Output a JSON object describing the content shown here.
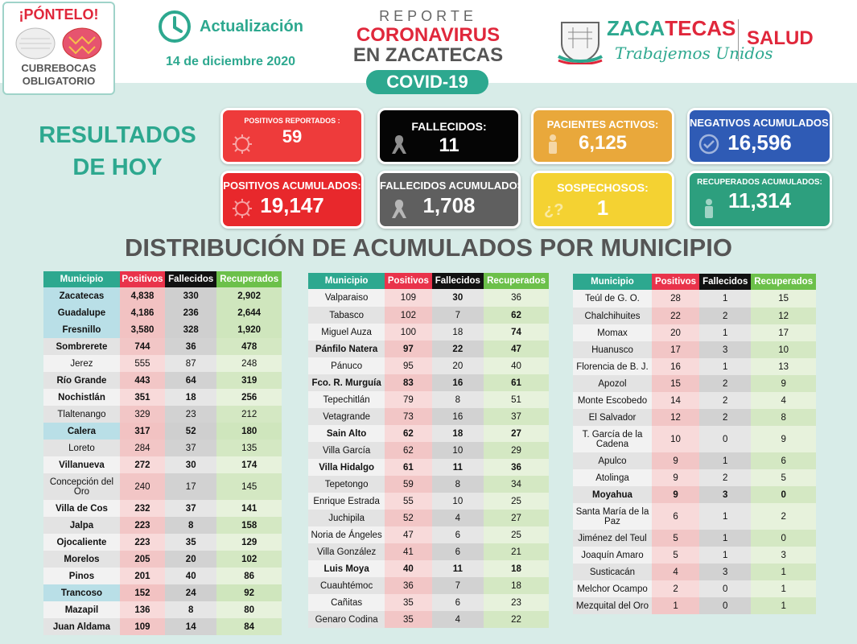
{
  "header": {
    "mask_title": "¡PÓNTELO!",
    "mask_subtitle_1": "CUBREBOCAS",
    "mask_subtitle_2": "OBLIGATORIO",
    "update_label": "Actualización",
    "update_date": "14 de diciembre 2020",
    "report_line1": "REPORTE",
    "report_line2": "CORONAVIRUS",
    "report_line3": "EN ZACATECAS",
    "covid_label": "COVID-19",
    "state_name_a": "ZACA",
    "state_name_b": "TECAS",
    "state_slogan": "Trabajemos Unidos",
    "salud": "SALUD"
  },
  "results": {
    "title_line1": "RESULTADOS",
    "title_line2": "DE HOY",
    "cards": [
      {
        "key": "positivos-reportados",
        "label": "POSITIVOS REPORTADOS :",
        "value": "59",
        "color": "#ee3b3b"
      },
      {
        "key": "fallecidos",
        "label": "FALLECIDOS:",
        "value": "11",
        "color": "#050505"
      },
      {
        "key": "pacientes-activos",
        "label": "PACIENTES ACTIVOS:",
        "value": "6,125",
        "color": "#e9a83b"
      },
      {
        "key": "negativos-acumulados",
        "label": "NEGATIVOS ACUMULADOS:",
        "value": "16,596",
        "color": "#2f5bb5"
      },
      {
        "key": "positivos-acumulados",
        "label": "POSITIVOS ACUMULADOS:",
        "value": "19,147",
        "color": "#e8282c"
      },
      {
        "key": "fallecidos-acumulados",
        "label": "FALLECIDOS ACUMULADOS:",
        "value": "1,708",
        "color": "#5f5f5f"
      },
      {
        "key": "sospechosos",
        "label": "SOSPECHOSOS:",
        "value": "1",
        "color": "#f4d232"
      },
      {
        "key": "recuperados-acumulados",
        "label": "RECUPERADOS ACUMULADOS:",
        "value": "11,314",
        "color": "#2d9f7e"
      }
    ]
  },
  "distribution": {
    "title": "DISTRIBUCIÓN DE ACUMULADOS POR MUNICIPIO",
    "columns": [
      "Municipio",
      "Positivos",
      "Fallecidos",
      "Recuperados"
    ],
    "tables": [
      [
        [
          "Zacatecas",
          "4,838",
          "330",
          "2,902"
        ],
        [
          "Guadalupe",
          "4,186",
          "236",
          "2,644"
        ],
        [
          "Fresnillo",
          "3,580",
          "328",
          "1,920"
        ],
        [
          "Sombrerete",
          "744",
          "36",
          "478"
        ],
        [
          "Jerez",
          "555",
          "87",
          "248"
        ],
        [
          "Río Grande",
          "443",
          "64",
          "319"
        ],
        [
          "Nochistlán",
          "351",
          "18",
          "256"
        ],
        [
          "Tlaltenango",
          "329",
          "23",
          "212"
        ],
        [
          "Calera",
          "317",
          "52",
          "180"
        ],
        [
          "Loreto",
          "284",
          "37",
          "135"
        ],
        [
          "Villanueva",
          "272",
          "30",
          "174"
        ],
        [
          "Concepción del Oro",
          "240",
          "17",
          "145"
        ],
        [
          "Villa de Cos",
          "232",
          "37",
          "141"
        ],
        [
          "Jalpa",
          "223",
          "8",
          "158"
        ],
        [
          "Ojocaliente",
          "223",
          "35",
          "129"
        ],
        [
          "Morelos",
          "205",
          "20",
          "102"
        ],
        [
          "Pinos",
          "201",
          "40",
          "86"
        ],
        [
          "Trancoso",
          "152",
          "24",
          "92"
        ],
        [
          "Mazapil",
          "136",
          "8",
          "80"
        ],
        [
          "Juan Aldama",
          "109",
          "14",
          "84"
        ]
      ],
      [
        [
          "Valparaiso",
          "109",
          "30",
          "36"
        ],
        [
          "Tabasco",
          "102",
          "7",
          "62"
        ],
        [
          "Miguel Auza",
          "100",
          "18",
          "74"
        ],
        [
          "Pánfilo Natera",
          "97",
          "22",
          "47"
        ],
        [
          "Pánuco",
          "95",
          "20",
          "40"
        ],
        [
          "Fco. R. Murguía",
          "83",
          "16",
          "61"
        ],
        [
          "Tepechitlán",
          "79",
          "8",
          "51"
        ],
        [
          "Vetagrande",
          "73",
          "16",
          "37"
        ],
        [
          "Sain Alto",
          "62",
          "18",
          "27"
        ],
        [
          "Villa García",
          "62",
          "10",
          "29"
        ],
        [
          "Villa Hidalgo",
          "61",
          "11",
          "36"
        ],
        [
          "Tepetongo",
          "59",
          "8",
          "34"
        ],
        [
          "Enrique Estrada",
          "55",
          "10",
          "25"
        ],
        [
          "Juchipila",
          "52",
          "4",
          "27"
        ],
        [
          "Noria de Ángeles",
          "47",
          "6",
          "25"
        ],
        [
          "Villa González",
          "41",
          "6",
          "21"
        ],
        [
          "Luis Moya",
          "40",
          "11",
          "18"
        ],
        [
          "Cuauhtémoc",
          "36",
          "7",
          "18"
        ],
        [
          "Cañitas",
          "35",
          "6",
          "23"
        ],
        [
          "Genaro Codina",
          "35",
          "4",
          "22"
        ]
      ],
      [
        [
          "Teúl de G. O.",
          "28",
          "1",
          "15"
        ],
        [
          "Chalchihuites",
          "22",
          "2",
          "12"
        ],
        [
          "Momax",
          "20",
          "1",
          "17"
        ],
        [
          "Huanusco",
          "17",
          "3",
          "10"
        ],
        [
          "Florencia de B. J.",
          "16",
          "1",
          "13"
        ],
        [
          "Apozol",
          "15",
          "2",
          "9"
        ],
        [
          "Monte Escobedo",
          "14",
          "2",
          "4"
        ],
        [
          "El Salvador",
          "12",
          "2",
          "8"
        ],
        [
          "T. García de la Cadena",
          "10",
          "0",
          "9"
        ],
        [
          "Apulco",
          "9",
          "1",
          "6"
        ],
        [
          "Atolinga",
          "9",
          "2",
          "5"
        ],
        [
          "Moyahua",
          "9",
          "3",
          "0"
        ],
        [
          "Santa María de la Paz",
          "6",
          "1",
          "2"
        ],
        [
          "Jiménez del Teul",
          "5",
          "1",
          "0"
        ],
        [
          "Joaquín Amaro",
          "5",
          "1",
          "3"
        ],
        [
          "Susticacán",
          "4",
          "3",
          "1"
        ],
        [
          "Melchor Ocampo",
          "2",
          "0",
          "1"
        ],
        [
          "Mezquital del Oro",
          "1",
          "0",
          "1"
        ]
      ]
    ]
  }
}
